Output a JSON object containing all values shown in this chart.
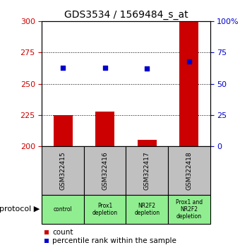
{
  "title": "GDS3534 / 1569484_s_at",
  "samples": [
    "GSM322415",
    "GSM322416",
    "GSM322417",
    "GSM322418"
  ],
  "protocols": [
    "control",
    "Prox1\ndepletion",
    "NR2F2\ndepletion",
    "Prox1 and\nNR2F2\ndepletion"
  ],
  "bar_values": [
    225,
    228,
    205,
    300
  ],
  "bar_base": 200,
  "dot_values": [
    63,
    63,
    62,
    68
  ],
  "ylim_left": [
    200,
    300
  ],
  "ylim_right": [
    0,
    100
  ],
  "yticks_left": [
    200,
    225,
    250,
    275,
    300
  ],
  "yticks_right": [
    0,
    25,
    50,
    75,
    100
  ],
  "ytick_right_labels": [
    "0",
    "25",
    "50",
    "75",
    "100%"
  ],
  "bar_color": "#cc0000",
  "dot_color": "#0000cc",
  "sample_bg": "#c0c0c0",
  "protocol_bg": "#90ee90",
  "left_tick_color": "#cc0000",
  "right_tick_color": "#0000cc",
  "grid_yticks": [
    225,
    250,
    275
  ],
  "bar_width": 0.45,
  "xlim": [
    -0.5,
    3.5
  ]
}
